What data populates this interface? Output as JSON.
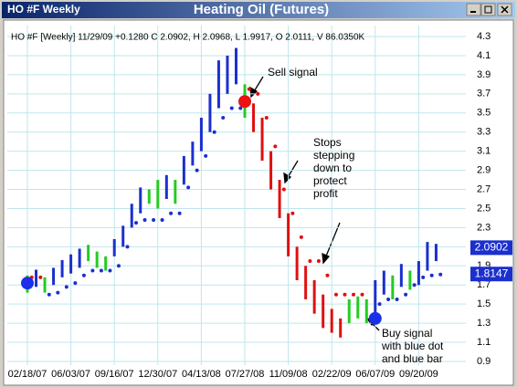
{
  "chart_data": {
    "type": "range-bar",
    "window_title": "HO #F Weekly",
    "title": "Heating Oil (Futures)",
    "info": "HO #F [Weekly] 11/29/09 +0.1280 C 2.0902, H 2.0968, L 1.9917, O 2.0111, V 86.0350K",
    "categories": [
      "02/18/07",
      null,
      null,
      null,
      null,
      "06/03/07",
      null,
      null,
      null,
      null,
      "09/16/07",
      null,
      null,
      null,
      null,
      "12/30/07",
      null,
      null,
      null,
      null,
      "04/13/08",
      null,
      null,
      null,
      null,
      "07/27/08",
      null,
      null,
      null,
      null,
      "11/09/08",
      null,
      null,
      null,
      null,
      "02/22/09",
      null,
      null,
      null,
      null,
      "06/07/09",
      null,
      null,
      null,
      null,
      "09/20/09",
      null,
      null
    ],
    "high": [
      1.8,
      1.86,
      1.78,
      1.88,
      1.96,
      2.02,
      2.08,
      2.12,
      2.05,
      2.0,
      2.18,
      2.32,
      2.55,
      2.72,
      2.7,
      2.8,
      2.85,
      2.8,
      3.05,
      3.2,
      3.45,
      3.7,
      4.05,
      4.1,
      4.18,
      3.8,
      3.6,
      3.45,
      3.1,
      2.8,
      2.45,
      2.1,
      1.9,
      1.75,
      1.6,
      1.45,
      1.35,
      1.55,
      1.58,
      1.55,
      1.75,
      1.85,
      1.8,
      1.92,
      1.85,
      1.95,
      2.15,
      2.13
    ],
    "low": [
      1.62,
      1.68,
      1.62,
      1.7,
      1.78,
      1.82,
      1.88,
      1.95,
      1.88,
      1.85,
      2.0,
      2.1,
      2.3,
      2.45,
      2.55,
      2.5,
      2.6,
      2.55,
      2.75,
      2.95,
      3.1,
      3.3,
      3.55,
      3.7,
      3.8,
      3.45,
      3.3,
      3.0,
      2.7,
      2.4,
      2.0,
      1.75,
      1.55,
      1.4,
      1.25,
      1.2,
      1.15,
      1.3,
      1.35,
      1.3,
      1.4,
      1.6,
      1.55,
      1.68,
      1.65,
      1.7,
      1.85,
      1.95
    ],
    "bar_colors": [
      "#22cc22",
      "#1b2fcf",
      "#22cc22",
      "#1b2fcf",
      "#1b2fcf",
      "#1b2fcf",
      "#1b2fcf",
      "#22cc22",
      "#22cc22",
      "#22cc22",
      "#1b2fcf",
      "#1b2fcf",
      "#1b2fcf",
      "#1b2fcf",
      "#22cc22",
      "#22cc22",
      "#1b2fcf",
      "#22cc22",
      "#1b2fcf",
      "#1b2fcf",
      "#1b2fcf",
      "#1b2fcf",
      "#1b2fcf",
      "#1b2fcf",
      "#1b2fcf",
      "#22cc22",
      "#e01010",
      "#e01010",
      "#e01010",
      "#e01010",
      "#e01010",
      "#e01010",
      "#e01010",
      "#e01010",
      "#e01010",
      "#e01010",
      "#e01010",
      "#22cc22",
      "#22cc22",
      "#22cc22",
      "#1b2fcf",
      "#1b2fcf",
      "#22cc22",
      "#1b2fcf",
      "#22cc22",
      "#1b2fcf",
      "#1b2fcf",
      "#1b2fcf"
    ],
    "stops": [
      1.78,
      1.78,
      1.6,
      1.62,
      1.68,
      1.72,
      1.8,
      1.85,
      1.85,
      1.85,
      1.9,
      2.1,
      2.35,
      2.38,
      2.38,
      2.38,
      2.45,
      2.45,
      2.72,
      2.9,
      3.05,
      3.3,
      3.45,
      3.55,
      3.55,
      3.75,
      3.7,
      3.45,
      3.15,
      2.7,
      2.45,
      2.2,
      1.95,
      1.95,
      1.8,
      1.6,
      1.6,
      1.6,
      1.6,
      1.35,
      1.5,
      1.55,
      1.55,
      1.6,
      1.7,
      1.78,
      1.8,
      1.81
    ],
    "stop_colors": [
      "#e01010",
      "#e01010",
      "#1b2fcf",
      "#1b2fcf",
      "#1b2fcf",
      "#1b2fcf",
      "#1b2fcf",
      "#1b2fcf",
      "#1b2fcf",
      "#1b2fcf",
      "#1b2fcf",
      "#1b2fcf",
      "#1b2fcf",
      "#1b2fcf",
      "#1b2fcf",
      "#1b2fcf",
      "#1b2fcf",
      "#1b2fcf",
      "#1b2fcf",
      "#1b2fcf",
      "#1b2fcf",
      "#1b2fcf",
      "#1b2fcf",
      "#1b2fcf",
      "#1b2fcf",
      "#e01010",
      "#e01010",
      "#e01010",
      "#e01010",
      "#e01010",
      "#e01010",
      "#e01010",
      "#e01010",
      "#e01010",
      "#e01010",
      "#e01010",
      "#e01010",
      "#e01010",
      "#e01010",
      "#1b2fcf",
      "#1b2fcf",
      "#1b2fcf",
      "#1b2fcf",
      "#1b2fcf",
      "#1b2fcf",
      "#1b2fcf",
      "#1b2fcf",
      "#1b2fcf"
    ],
    "signals": [
      {
        "value": 1.72,
        "color": "#1b2fe8"
      },
      null,
      null,
      null,
      null,
      null,
      null,
      null,
      null,
      null,
      null,
      null,
      null,
      null,
      null,
      null,
      null,
      null,
      null,
      null,
      null,
      null,
      null,
      null,
      null,
      {
        "value": 3.62,
        "color": "#ee1111"
      },
      null,
      null,
      null,
      null,
      null,
      null,
      null,
      null,
      null,
      null,
      null,
      null,
      null,
      null,
      {
        "value": 1.35,
        "color": "#1b2fe8"
      },
      null,
      null,
      null,
      null,
      null,
      null,
      null
    ],
    "last_price": 2.0902,
    "last_stop": 1.8147,
    "ylim": [
      0.9,
      4.3
    ],
    "yticks": [
      0.9,
      1.1,
      1.3,
      1.5,
      1.7,
      1.9,
      2.1,
      2.3,
      2.5,
      2.7,
      2.9,
      3.1,
      3.3,
      3.5,
      3.7,
      3.9,
      4.1,
      4.3
    ],
    "grid": true,
    "annotations": [
      {
        "lines": [
          "Sell signal"
        ]
      },
      {
        "lines": [
          "Stops",
          "stepping",
          "down to",
          "protect",
          "profit"
        ]
      },
      {
        "lines": [
          "Buy signal",
          "with blue dot",
          "and blue bar"
        ]
      }
    ]
  }
}
